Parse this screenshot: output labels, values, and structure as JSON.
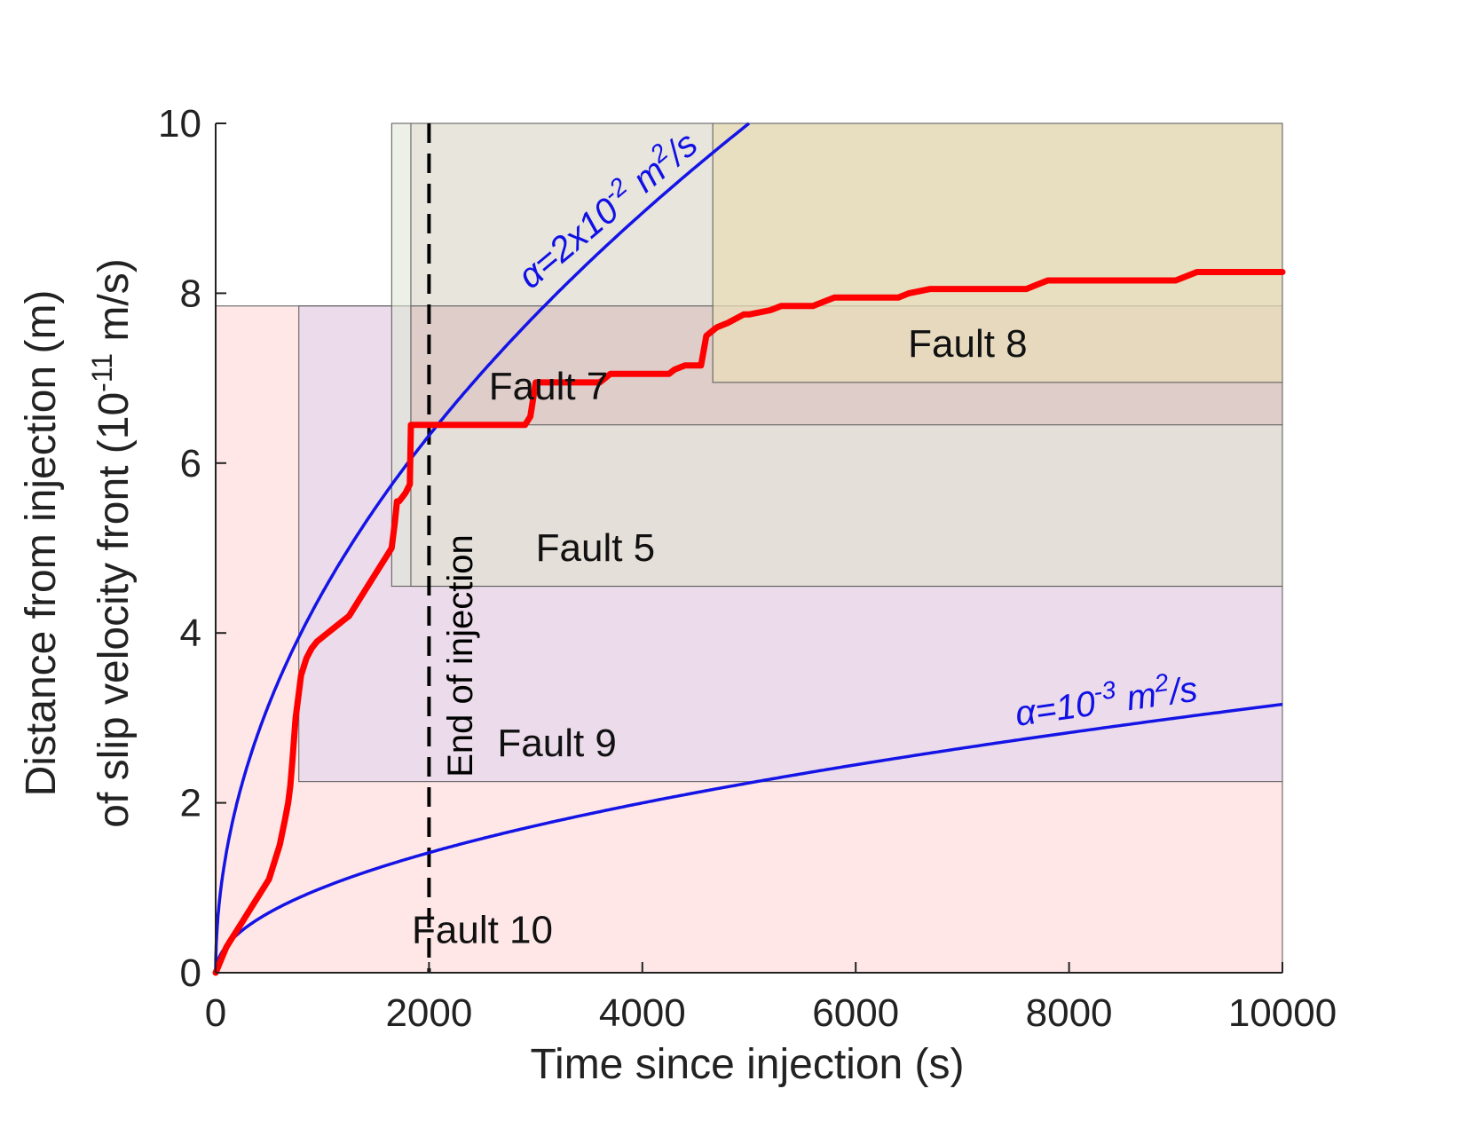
{
  "chart_data": {
    "type": "line",
    "xlabel": "Time since injection (s)",
    "ylabel_line1": "Distance from injection (m)",
    "ylabel_line2_prefix": "of slip velocity front (10",
    "ylabel_line2_exp": "-11",
    "ylabel_line2_suffix": " m/s)",
    "xlim": [
      0,
      10000
    ],
    "ylim": [
      0,
      10
    ],
    "xticks": [
      0,
      2000,
      4000,
      6000,
      8000,
      10000
    ],
    "xtick_labels": [
      "0",
      "2000",
      "4000",
      "6000",
      "8000",
      "10000"
    ],
    "yticks": [
      0,
      2,
      4,
      6,
      8,
      10
    ],
    "ytick_labels": [
      "0",
      "2",
      "4",
      "6",
      "8",
      "10"
    ],
    "fault_regions": [
      {
        "name": "Fault 10",
        "x0": 0,
        "x1": 10000,
        "y0": 0,
        "y1": 7.85,
        "color": "#ffe3e3",
        "opacity": 0.85
      },
      {
        "name": "Fault 9",
        "x0": 780,
        "x1": 10000,
        "y0": 2.25,
        "y1": 7.85,
        "color": "#dcd3ee",
        "opacity": 0.55
      },
      {
        "name": "",
        "x0": 1650,
        "x1": 10000,
        "y0": 4.55,
        "y1": 10,
        "color": "#dfe6d6",
        "opacity": 0.6
      },
      {
        "name": "Fault 5",
        "x0": 1830,
        "x1": 10000,
        "y0": 4.55,
        "y1": 10,
        "color": "#e3ddd3",
        "opacity": 0.55
      },
      {
        "name": "Fault 7",
        "x0": 1830,
        "x1": 10000,
        "y0": 6.45,
        "y1": 7.85,
        "color": "#d7b8b8",
        "opacity": 0.45
      },
      {
        "name": "Fault 8",
        "x0": 4660,
        "x1": 10000,
        "y0": 6.95,
        "y1": 10,
        "color": "#e8dcb8",
        "opacity": 0.75
      }
    ],
    "fault_labels": [
      {
        "text": "Fault 10",
        "x": 2500,
        "y": 0.35
      },
      {
        "text": "Fault 9",
        "x": 3200,
        "y": 2.55
      },
      {
        "text": "Fault 5",
        "x": 3560,
        "y": 4.85
      },
      {
        "text": "Fault 7",
        "x": 3120,
        "y": 6.75
      },
      {
        "text": "Fault 8",
        "x": 7050,
        "y": 7.25
      }
    ],
    "end_of_injection": {
      "x": 2000,
      "label": "End of injection"
    },
    "alpha_curves": [
      {
        "name": "alpha_fast",
        "label_prefix": "α=2x10",
        "label_exp": "-2",
        "label_mid": " m",
        "label_exp2": "2",
        "label_suffix": "/s",
        "color": "#1414e6",
        "formula": "y=10*sqrt(t/5000)",
        "t_max": 5000
      },
      {
        "name": "alpha_slow",
        "label_prefix": "α=10",
        "label_exp": "-3",
        "label_mid": " m",
        "label_exp2": "2",
        "label_suffix": "/s",
        "color": "#1414e6",
        "formula": "y=3.16*sqrt(t/10000)",
        "t_max": 10000
      }
    ],
    "series": [
      {
        "name": "slip velocity front",
        "color": "#ff0000",
        "x": [
          0,
          50,
          100,
          150,
          200,
          250,
          300,
          350,
          400,
          450,
          500,
          550,
          600,
          650,
          680,
          700,
          720,
          750,
          780,
          800,
          850,
          900,
          950,
          1000,
          1050,
          1100,
          1150,
          1200,
          1250,
          1300,
          1350,
          1400,
          1450,
          1500,
          1550,
          1600,
          1650,
          1680,
          1700,
          1720,
          1750,
          1780,
          1800,
          1820,
          1830,
          1850,
          2000,
          2500,
          2900,
          2950,
          3000,
          3050,
          3600,
          3650,
          3700,
          4250,
          4300,
          4400,
          4550,
          4600,
          4650,
          4700,
          4800,
          4950,
          5000,
          5200,
          5300,
          5600,
          5700,
          5800,
          6400,
          6500,
          6700,
          7600,
          7700,
          7800,
          9000,
          9100,
          9200,
          9300,
          9500,
          10000
        ],
        "y": [
          0,
          0.15,
          0.3,
          0.4,
          0.5,
          0.6,
          0.7,
          0.8,
          0.9,
          1.0,
          1.1,
          1.3,
          1.5,
          1.8,
          2.0,
          2.2,
          2.5,
          3.0,
          3.3,
          3.5,
          3.7,
          3.82,
          3.9,
          3.95,
          4.0,
          4.05,
          4.1,
          4.15,
          4.2,
          4.3,
          4.4,
          4.5,
          4.6,
          4.7,
          4.8,
          4.9,
          5.0,
          5.3,
          5.55,
          5.55,
          5.6,
          5.65,
          5.7,
          5.75,
          6.45,
          6.45,
          6.45,
          6.45,
          6.45,
          6.55,
          6.95,
          6.95,
          6.95,
          7.0,
          7.05,
          7.05,
          7.1,
          7.15,
          7.15,
          7.5,
          7.55,
          7.6,
          7.65,
          7.75,
          7.75,
          7.8,
          7.85,
          7.85,
          7.9,
          7.95,
          7.95,
          8.0,
          8.05,
          8.05,
          8.1,
          8.15,
          8.15,
          8.2,
          8.25,
          8.25,
          8.25,
          8.25
        ]
      }
    ]
  }
}
